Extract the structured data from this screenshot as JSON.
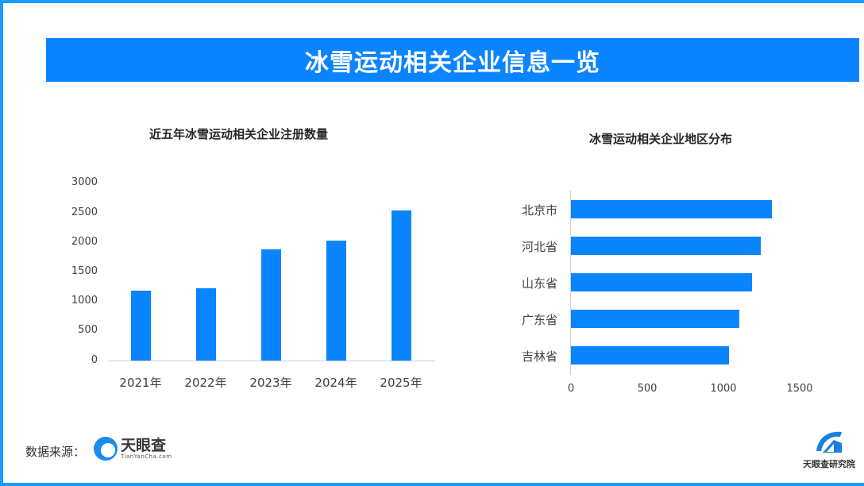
{
  "header": {
    "title": "冰雪运动相关企业信息一览"
  },
  "colors": {
    "accent": "#0a84ff",
    "frame": "#1a9bff"
  },
  "left_chart": {
    "title": "近五年冰雪运动相关企业注册数量",
    "yticks": [
      "3000",
      "2500",
      "2000",
      "1500",
      "1000",
      "500",
      "0"
    ],
    "categories": [
      "2021年",
      "2022年",
      "2023年",
      "2024年",
      "2025年"
    ]
  },
  "right_chart": {
    "title": "冰雪运动相关企业地区分布",
    "categories": [
      "北京市",
      "河北省",
      "山东省",
      "广东省",
      "吉林省"
    ],
    "xticks": [
      "0",
      "500",
      "1000",
      "1500"
    ]
  },
  "footer": {
    "source_label": "数据来源：",
    "source_logo_cn": "天眼查",
    "source_logo_en": "TianYanCha.com",
    "institute_name": "天眼查研究院"
  },
  "chart_data": [
    {
      "type": "bar",
      "title": "近五年冰雪运动相关企业注册数量",
      "categories": [
        "2021年",
        "2022年",
        "2023年",
        "2024年",
        "2025年"
      ],
      "values": [
        1180,
        1220,
        1875,
        2020,
        2530
      ],
      "xlabel": "",
      "ylabel": "",
      "ylim": [
        0,
        3000
      ],
      "yticks": [
        0,
        500,
        1000,
        1500,
        2000,
        2500,
        3000
      ],
      "grid": false,
      "legend": "none"
    },
    {
      "type": "bar",
      "orientation": "horizontal",
      "title": "冰雪运动相关企业地区分布",
      "categories": [
        "北京市",
        "河北省",
        "山东省",
        "广东省",
        "吉林省"
      ],
      "values": [
        1320,
        1245,
        1190,
        1105,
        1035
      ],
      "xlabel": "",
      "ylabel": "",
      "xlim": [
        0,
        1500
      ],
      "xticks": [
        0,
        500,
        1000,
        1500
      ],
      "grid": false,
      "legend": "none"
    }
  ]
}
